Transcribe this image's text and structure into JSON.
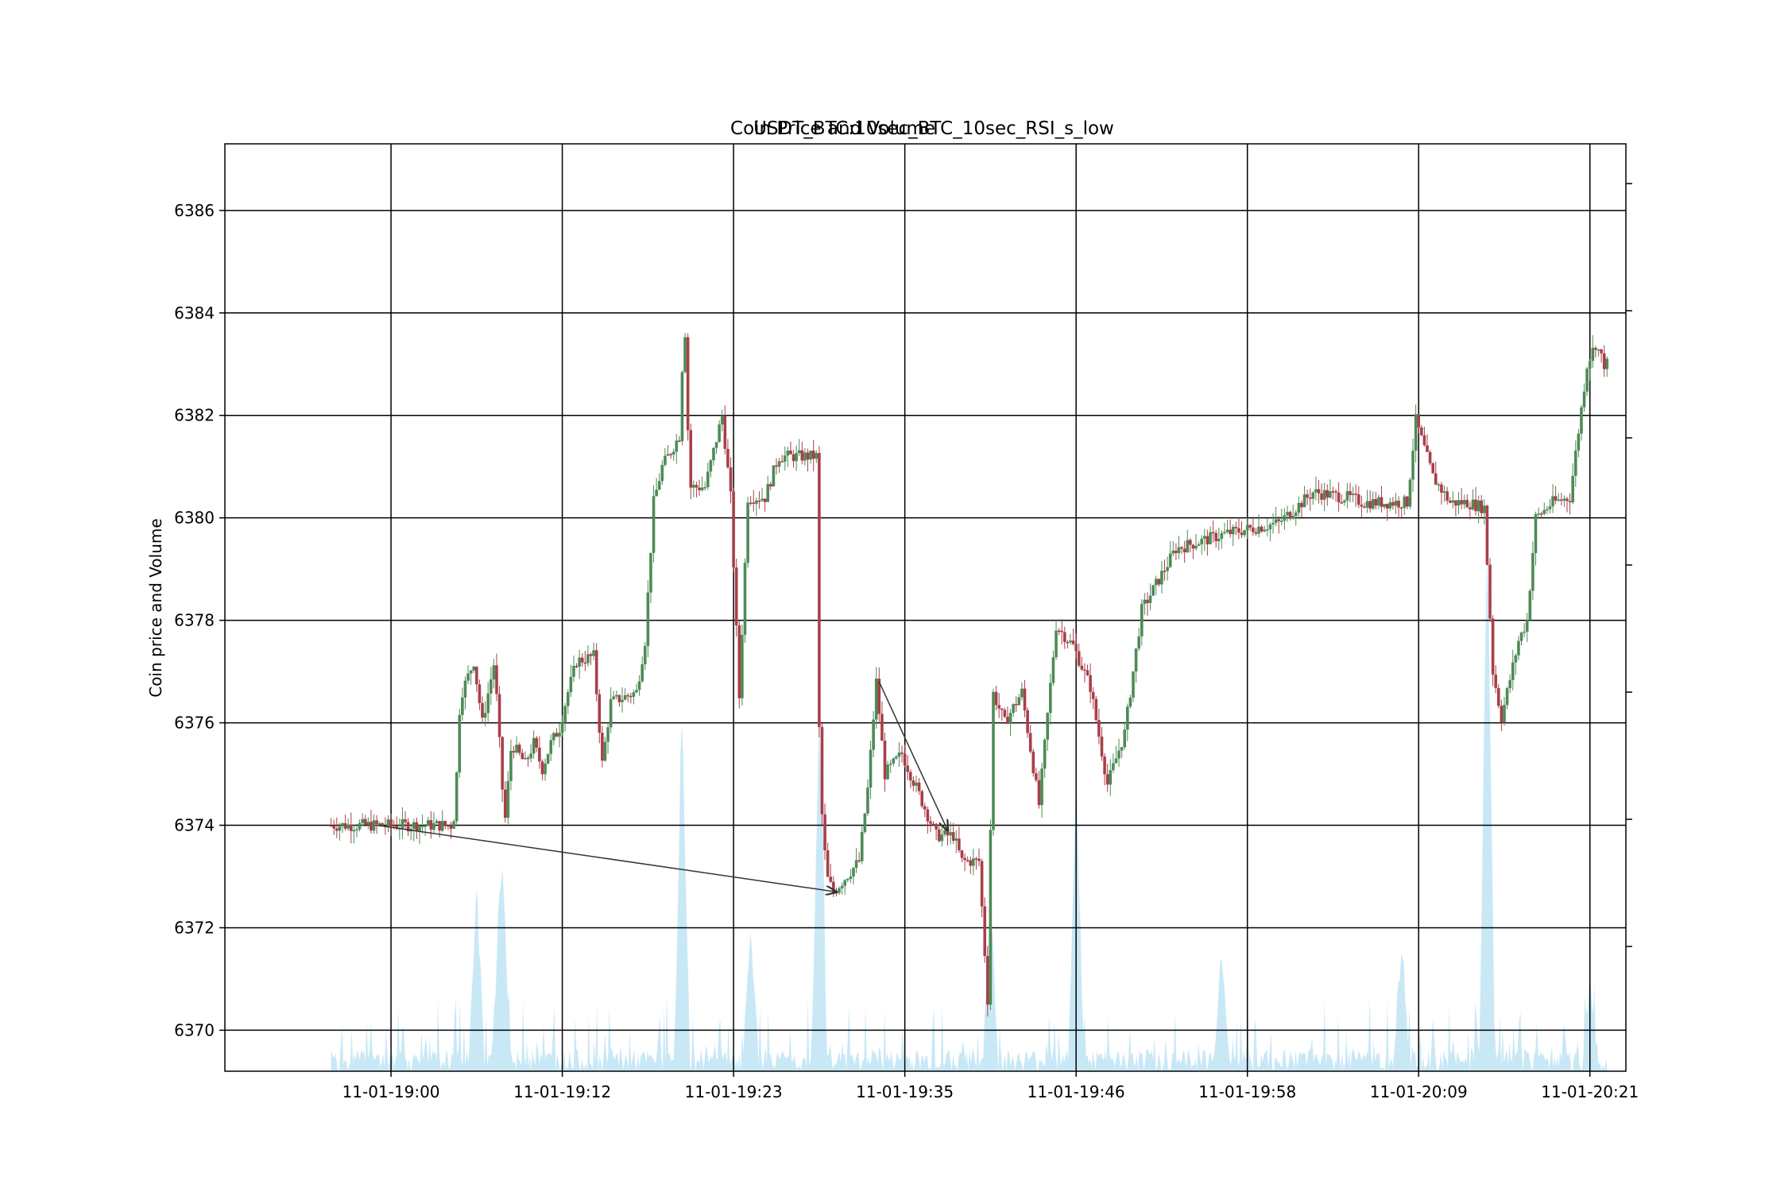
{
  "window": {
    "title": "Coin Price and Volume"
  },
  "chart_data": {
    "type": "candlestick",
    "title_left": "Coin Price and Volume",
    "title_center": "USDT_BTC:10sec_BTC_10sec_RSI_s_low",
    "ylabel": "Coin price and Volume",
    "xlabel": "",
    "grid": true,
    "ylim": [
      6369.2,
      6387.3
    ],
    "xlim": [
      -9.7,
      72.1
    ],
    "y_ticks": [
      6370,
      6372,
      6374,
      6376,
      6378,
      6380,
      6382,
      6384,
      6386
    ],
    "x_ticks": [
      {
        "label": "11-01-19:00",
        "minute": 0
      },
      {
        "label": "11-01-19:12",
        "minute": 10
      },
      {
        "label": "11-01-19:23",
        "minute": 20
      },
      {
        "label": "11-01-19:35",
        "minute": 30
      },
      {
        "label": "11-01-19:46",
        "minute": 40
      },
      {
        "label": "11-01-19:58",
        "minute": 50
      },
      {
        "label": "11-01-20:09",
        "minute": 60
      },
      {
        "label": "11-01-20:21",
        "minute": 70
      }
    ],
    "colors": {
      "up": "#4e8a57",
      "down": "#a83f48",
      "volume": "#bfe4f3",
      "grid": "#000000",
      "arrow": "#333333"
    },
    "price_anchors": [
      [
        -3.5,
        6374.0
      ],
      [
        3.8,
        6374.0
      ],
      [
        4.0,
        6375.0
      ],
      [
        4.2,
        6376.5
      ],
      [
        5.0,
        6377.2
      ],
      [
        5.5,
        6376.0
      ],
      [
        6.2,
        6377.2
      ],
      [
        6.8,
        6374.0
      ],
      [
        7.2,
        6375.6
      ],
      [
        8.0,
        6375.2
      ],
      [
        8.5,
        6375.6
      ],
      [
        9.0,
        6375.1
      ],
      [
        9.5,
        6375.6
      ],
      [
        10.0,
        6375.9
      ],
      [
        10.5,
        6376.6
      ],
      [
        11.0,
        6377.2
      ],
      [
        12.0,
        6377.3
      ],
      [
        12.5,
        6375.2
      ],
      [
        13.0,
        6376.4
      ],
      [
        14.5,
        6376.6
      ],
      [
        15.0,
        6377.6
      ],
      [
        15.5,
        6380.3
      ],
      [
        16.0,
        6381.0
      ],
      [
        17.0,
        6381.6
      ],
      [
        17.3,
        6384.0
      ],
      [
        17.6,
        6380.6
      ],
      [
        18.5,
        6380.6
      ],
      [
        19.5,
        6382.0
      ],
      [
        20.0,
        6380.4
      ],
      [
        20.5,
        6376.5
      ],
      [
        21.0,
        6380.4
      ],
      [
        22.0,
        6380.4
      ],
      [
        22.8,
        6381.2
      ],
      [
        24.0,
        6381.2
      ],
      [
        25.0,
        6381.2
      ],
      [
        25.2,
        6374.8
      ],
      [
        25.6,
        6373.0
      ],
      [
        26.0,
        6372.7
      ],
      [
        27.5,
        6373.3
      ],
      [
        28.0,
        6374.7
      ],
      [
        28.5,
        6376.8
      ],
      [
        29.0,
        6375.0
      ],
      [
        30.0,
        6375.4
      ],
      [
        31.5,
        6374.2
      ],
      [
        32.0,
        6373.8
      ],
      [
        33.0,
        6373.8
      ],
      [
        33.5,
        6373.3
      ],
      [
        34.5,
        6373.3
      ],
      [
        35.0,
        6370.6
      ],
      [
        35.3,
        6376.6
      ],
      [
        36.0,
        6376.0
      ],
      [
        37.0,
        6376.6
      ],
      [
        38.0,
        6374.4
      ],
      [
        39.0,
        6377.9
      ],
      [
        40.0,
        6377.5
      ],
      [
        41.0,
        6376.7
      ],
      [
        42.0,
        6374.8
      ],
      [
        43.0,
        6375.8
      ],
      [
        44.0,
        6378.2
      ],
      [
        45.0,
        6378.8
      ],
      [
        46.0,
        6379.4
      ],
      [
        47.0,
        6379.5
      ],
      [
        48.0,
        6379.6
      ],
      [
        49.0,
        6379.7
      ],
      [
        50.5,
        6379.8
      ],
      [
        52.0,
        6379.9
      ],
      [
        53.0,
        6380.2
      ],
      [
        54.0,
        6380.5
      ],
      [
        56.0,
        6380.4
      ],
      [
        57.0,
        6380.3
      ],
      [
        59.5,
        6380.3
      ],
      [
        60.0,
        6381.9
      ],
      [
        61.0,
        6380.8
      ],
      [
        62.0,
        6380.3
      ],
      [
        63.0,
        6380.3
      ],
      [
        64.0,
        6380.2
      ],
      [
        64.5,
        6377.0
      ],
      [
        65.0,
        6376.1
      ],
      [
        66.0,
        6377.6
      ],
      [
        66.5,
        6378.0
      ],
      [
        67.0,
        6380.0
      ],
      [
        68.0,
        6380.3
      ],
      [
        69.0,
        6380.4
      ],
      [
        70.0,
        6383.0
      ],
      [
        70.5,
        6383.4
      ],
      [
        71.0,
        6383.0
      ]
    ],
    "volume_spikes": [
      [
        5.0,
        2.7
      ],
      [
        6.3,
        1.9
      ],
      [
        6.6,
        2.0
      ],
      [
        17.0,
        5.4
      ],
      [
        21.0,
        2.1
      ],
      [
        25.0,
        5.4
      ],
      [
        35.0,
        2.6
      ],
      [
        40.0,
        4.6
      ],
      [
        48.5,
        1.7
      ],
      [
        59.0,
        1.8
      ],
      [
        64.0,
        8.6
      ],
      [
        70.0,
        1.2
      ]
    ],
    "annotations": [
      {
        "type": "arrow",
        "from": [
          -0.8,
          6374.0
        ],
        "to": [
          26.0,
          6372.7
        ]
      },
      {
        "type": "arrow",
        "from": [
          28.5,
          6376.8
        ],
        "to": [
          32.5,
          6373.9
        ]
      }
    ]
  }
}
